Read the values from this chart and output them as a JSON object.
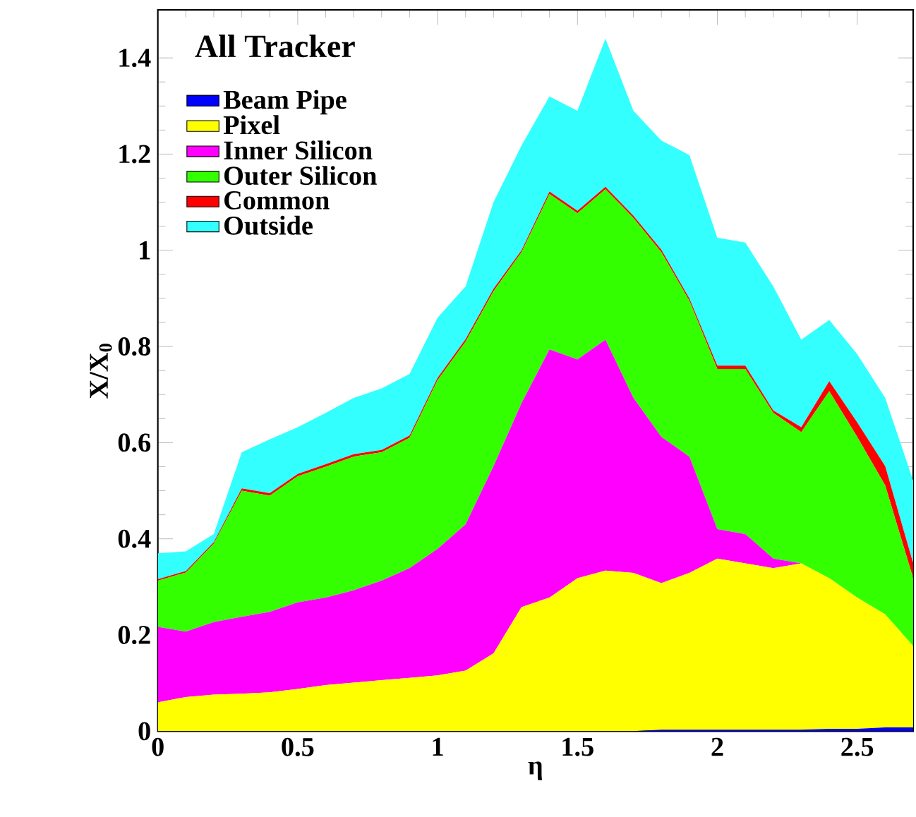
{
  "chart_data": {
    "type": "area",
    "stacked": true,
    "title": "All Tracker",
    "xlabel": "η",
    "ylabel": "X/X$_{0}$",
    "x": [
      0,
      0.1,
      0.2,
      0.3,
      0.4,
      0.5,
      0.6,
      0.7,
      0.8,
      0.9,
      1.0,
      1.1,
      1.2,
      1.3,
      1.4,
      1.5,
      1.6,
      1.7,
      1.8,
      1.9,
      2.0,
      2.1,
      2.2,
      2.3,
      2.4,
      2.5,
      2.6,
      2.7
    ],
    "series": [
      {
        "name": "Beam Pipe",
        "color": "#0000ff",
        "values": [
          0,
          0,
          0,
          0,
          0,
          0,
          0,
          0,
          0,
          0,
          0,
          0,
          0,
          0,
          0,
          0,
          0,
          0,
          0.003,
          0.003,
          0.003,
          0.003,
          0.003,
          0.003,
          0.005,
          0.005,
          0.008,
          0.008
        ]
      },
      {
        "name": "Pixel",
        "color": "#ffff00",
        "values": [
          0.06,
          0.071,
          0.076,
          0.078,
          0.081,
          0.088,
          0.096,
          0.101,
          0.106,
          0.111,
          0.116,
          0.126,
          0.162,
          0.258,
          0.278,
          0.318,
          0.334,
          0.329,
          0.305,
          0.326,
          0.356,
          0.346,
          0.336,
          0.346,
          0.313,
          0.273,
          0.235,
          0.169
        ]
      },
      {
        "name": "Inner Silicon",
        "color": "#ff00ff",
        "values": [
          0.157,
          0.136,
          0.151,
          0.16,
          0.167,
          0.18,
          0.182,
          0.192,
          0.207,
          0.228,
          0.263,
          0.304,
          0.389,
          0.424,
          0.516,
          0.455,
          0.48,
          0.364,
          0.304,
          0.242,
          0.061,
          0.061,
          0.02,
          0,
          0,
          0,
          0,
          0
        ]
      },
      {
        "name": "Outer Silicon",
        "color": "#33ff00",
        "values": [
          0.096,
          0.123,
          0.163,
          0.262,
          0.242,
          0.262,
          0.272,
          0.278,
          0.267,
          0.271,
          0.351,
          0.38,
          0.364,
          0.314,
          0.323,
          0.304,
          0.313,
          0.374,
          0.384,
          0.324,
          0.333,
          0.343,
          0.303,
          0.273,
          0.389,
          0.334,
          0.268,
          0.141
        ]
      },
      {
        "name": "Common",
        "color": "#ff0000",
        "values": [
          0.003,
          0.003,
          0.003,
          0.005,
          0.005,
          0.005,
          0.005,
          0.005,
          0.005,
          0.005,
          0.005,
          0.005,
          0.005,
          0.004,
          0.005,
          0.005,
          0.005,
          0.005,
          0.005,
          0.005,
          0.007,
          0.007,
          0.005,
          0.01,
          0.021,
          0.03,
          0.04,
          0.031
        ]
      },
      {
        "name": "Outside",
        "color": "#33ffff",
        "values": [
          0.054,
          0.041,
          0.017,
          0.075,
          0.112,
          0.097,
          0.107,
          0.117,
          0.128,
          0.128,
          0.125,
          0.11,
          0.18,
          0.218,
          0.198,
          0.208,
          0.308,
          0.218,
          0.227,
          0.298,
          0.266,
          0.256,
          0.258,
          0.182,
          0.127,
          0.142,
          0.142,
          0.172
        ]
      }
    ],
    "xlim": [
      0,
      2.7
    ],
    "ylim": [
      0,
      1.5
    ],
    "xticks": [
      0,
      0.5,
      1,
      1.5,
      2,
      2.5
    ],
    "yticks": [
      0,
      0.2,
      0.4,
      0.6,
      0.8,
      1,
      1.2,
      1.4
    ],
    "legend": "top left"
  }
}
